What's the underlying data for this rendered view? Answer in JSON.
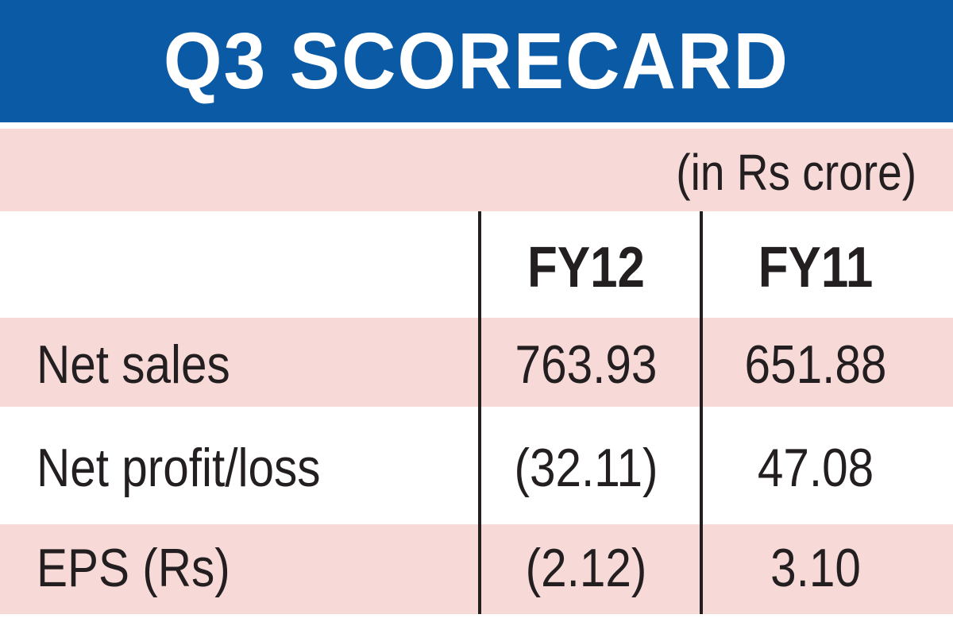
{
  "chart_data": {
    "type": "table",
    "title": "Q3 SCORECARD",
    "unit_note": "(in Rs crore)",
    "columns": [
      "FY12",
      "FY11"
    ],
    "rows": [
      {
        "label": "Net sales",
        "values": [
          "763.93",
          "651.88"
        ]
      },
      {
        "label": "Net profit/loss",
        "values": [
          "(32.11)",
          "47.08"
        ]
      },
      {
        "label": "EPS (Rs)",
        "values": [
          "(2.12)",
          "3.10"
        ]
      }
    ]
  },
  "colors": {
    "title_bg": "#0b5aa5",
    "title_text": "#ffffff",
    "stripe": "#f7dad8",
    "text": "#231f20"
  }
}
